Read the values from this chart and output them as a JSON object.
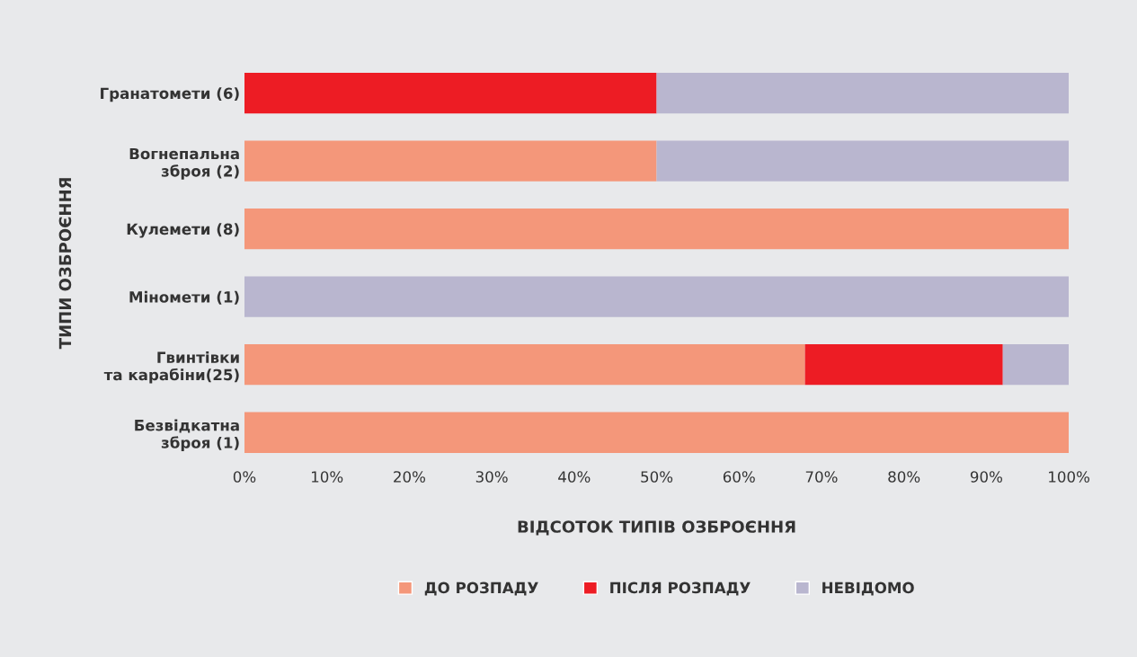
{
  "chart_data": {
    "type": "bar",
    "orientation": "horizontal",
    "stacked": true,
    "xlabel": "ВІДСОТОК ТИПІВ ОЗБРОЄННЯ",
    "ylabel": "ТИПИ ОЗБРОЄННЯ",
    "categories": [
      "Гранатомети (6)",
      "Вогнепальна\nзброя (2)",
      "Кулемети (8)",
      "Міномети (1)",
      "Гвинтівки\nта карабіни(25)",
      "Безвідкатна\nзброя (1)"
    ],
    "series": [
      {
        "name": "ДО РОЗПАДУ",
        "color": "#f4977a",
        "values": [
          0,
          50,
          100,
          0,
          68,
          100
        ]
      },
      {
        "name": "ПІСЛЯ РОЗПАДУ",
        "color": "#ed1c24",
        "values": [
          50,
          0,
          0,
          0,
          24,
          0
        ]
      },
      {
        "name": "НЕВІДОМО",
        "color": "#b9b6cf",
        "values": [
          50,
          50,
          0,
          100,
          8,
          0
        ]
      }
    ],
    "xlim": [
      0,
      100
    ],
    "xticks": [
      {
        "value": 0,
        "label": "0%"
      },
      {
        "value": 10,
        "label": "10%"
      },
      {
        "value": 20,
        "label": "20%"
      },
      {
        "value": 30,
        "label": "30%"
      },
      {
        "value": 40,
        "label": "40%"
      },
      {
        "value": 50,
        "label": "50%"
      },
      {
        "value": 60,
        "label": "60%"
      },
      {
        "value": 70,
        "label": "70%"
      },
      {
        "value": 80,
        "label": "80%"
      },
      {
        "value": 90,
        "label": "90%"
      },
      {
        "value": 100,
        "label": "100%"
      }
    ],
    "grid": false,
    "legend": "bottom"
  }
}
